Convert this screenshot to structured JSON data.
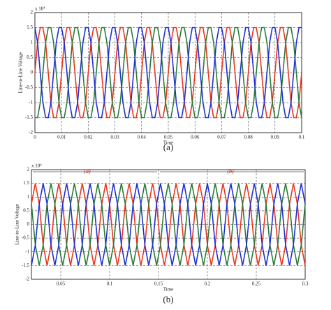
{
  "chart_data": [
    {
      "type": "line",
      "caption": "(a)",
      "x_label": "Time",
      "y_label": "Line-to-Line Voltage",
      "y_multiplier": "x 10⁴",
      "x": [
        0,
        0.001,
        0.002,
        0.003,
        0.004,
        0.005,
        0.006,
        0.007,
        0.008,
        0.009,
        0.01,
        0.011,
        0.012,
        0.013,
        0.014,
        0.015,
        0.016,
        0.017,
        0.018,
        0.019,
        0.02,
        0.021,
        0.022,
        0.023,
        0.024,
        0.025,
        0.026,
        0.027,
        0.028,
        0.029,
        0.03,
        0.031,
        0.032,
        0.033,
        0.034,
        0.035,
        0.036,
        0.037,
        0.038,
        0.039,
        0.04,
        0.041,
        0.042,
        0.043,
        0.044,
        0.045,
        0.046,
        0.047,
        0.048,
        0.049,
        0.05,
        0.051,
        0.052,
        0.053,
        0.054,
        0.055,
        0.056,
        0.057,
        0.058,
        0.059,
        0.06,
        0.061,
        0.062,
        0.063,
        0.064,
        0.065,
        0.066,
        0.067,
        0.068,
        0.069,
        0.07,
        0.071,
        0.072,
        0.073,
        0.074,
        0.075,
        0.076,
        0.077,
        0.078,
        0.079,
        0.08,
        0.081,
        0.082,
        0.083,
        0.084,
        0.085,
        0.086,
        0.087,
        0.088,
        0.089,
        0.09,
        0.091,
        0.092,
        0.093,
        0.094,
        0.095,
        0.096,
        0.097,
        0.098,
        0.099,
        0.1
      ],
      "series": [
        {
          "color": "#e8371f",
          "values": [
            0,
            1,
            1.5,
            1.5,
            1,
            0,
            -1,
            -1.5,
            -1.5,
            -1,
            0,
            1,
            1.5,
            1.5,
            1,
            0,
            -1,
            -1.5,
            -1.5,
            -1,
            0,
            1,
            1.5,
            1.5,
            1,
            0,
            -1,
            -1.5,
            -1.5,
            -1,
            0,
            1,
            1.5,
            1.5,
            1,
            0,
            -1,
            -1.5,
            -1.5,
            -1,
            0,
            1,
            1.5,
            1.5,
            1,
            0,
            -1,
            -1.5,
            -1.5,
            -1,
            0,
            1,
            1.5,
            1.5,
            1,
            0,
            -1,
            -1.5,
            -1.5,
            -1,
            0,
            1,
            1.5,
            1.5,
            1,
            0,
            -1,
            -1.5,
            -1.5,
            -1,
            0,
            1,
            1.5,
            1.5,
            1,
            0,
            -1,
            -1.5,
            -1.5,
            -1,
            0,
            1,
            1.5,
            1.5,
            1,
            0,
            -1,
            -1.5,
            -1.5,
            -1,
            0,
            1,
            1.5,
            1.5,
            1,
            0,
            -1,
            -1.5,
            -1.5,
            -1,
            0
          ]
        },
        {
          "color": "#2a7a3a",
          "values": [
            -1.5,
            -1.5,
            -1,
            0,
            1,
            1.5,
            1.5,
            1,
            0,
            -1,
            -1.5,
            -1.5,
            -1,
            0,
            1,
            1.5,
            1.5,
            1,
            0,
            -1,
            -1.5,
            -1.5,
            -1,
            0,
            1,
            1.5,
            1.5,
            1,
            0,
            -1,
            -1.5,
            -1.5,
            -1,
            0,
            1,
            1.5,
            1.5,
            1,
            0,
            -1,
            -1.5,
            -1.5,
            -1,
            0,
            1,
            1.5,
            1.5,
            1,
            0,
            -1,
            -1.5,
            -1.5,
            -1,
            0,
            1,
            1.5,
            1.5,
            1,
            0,
            -1,
            -1.5,
            -1.5,
            -1,
            0,
            1,
            1.5,
            1.5,
            1,
            0,
            -1,
            -1.5,
            -1.5,
            -1,
            0,
            1,
            1.5,
            1.5,
            1,
            0,
            -1,
            -1.5,
            -1.5,
            -1,
            0,
            1,
            1.5,
            1.5,
            1,
            0,
            -1,
            -1.5,
            -1.5,
            -1,
            0,
            1,
            1.5,
            1.5,
            1,
            0,
            -1,
            -1.5
          ]
        },
        {
          "color": "#1f2fd0",
          "values": [
            1.5,
            1,
            0,
            -1,
            -1.5,
            -1.5,
            -1,
            0,
            1,
            1.5,
            1.5,
            1,
            0,
            -1,
            -1.5,
            -1.5,
            -1,
            0,
            1,
            1.5,
            1.5,
            1,
            0,
            -1,
            -1.5,
            -1.5,
            -1,
            0,
            1,
            1.5,
            1.5,
            1,
            0,
            -1,
            -1.5,
            -1.5,
            -1,
            0,
            1,
            1.5,
            1.5,
            1,
            0,
            -1,
            -1.5,
            -1.5,
            -1,
            0,
            1,
            1.5,
            1.5,
            1,
            0,
            -1,
            -1.5,
            -1.5,
            -1,
            0,
            1,
            1.5,
            1.5,
            1,
            0,
            -1,
            -1.5,
            -1.5,
            -1,
            0,
            1,
            1.5,
            1.5,
            1,
            0,
            -1,
            -1.5,
            -1.5,
            -1,
            0,
            1,
            1.5,
            1.5,
            1,
            0,
            -1,
            -1.5,
            -1.5,
            -1,
            0,
            1,
            1.5,
            1.5,
            1,
            0,
            -1,
            -1.5,
            -1.5,
            -1,
            0,
            1,
            1.5,
            1.5
          ]
        }
      ],
      "xlim": [
        0,
        0.1
      ],
      "xticks": [
        0,
        0.01,
        0.02,
        0.03,
        0.04,
        0.05,
        0.06,
        0.07,
        0.08,
        0.09,
        0.1
      ],
      "ylim": [
        -2,
        2
      ],
      "yticks": [
        -2,
        -1.5,
        -1,
        -0.5,
        0,
        0.5,
        1,
        1.5,
        2
      ],
      "grid": true
    },
    {
      "type": "line",
      "caption": "(b)",
      "x_label": "Time",
      "y_label": "Line-to-Line Voltage",
      "y_multiplier": "x 10⁴",
      "annotations": [
        "(a)",
        "(b)"
      ],
      "x": [
        0.02,
        0.024,
        0.028,
        0.032,
        0.036,
        0.04,
        0.044,
        0.048,
        0.052,
        0.056,
        0.06,
        0.064,
        0.068,
        0.072,
        0.076,
        0.08,
        0.084,
        0.088,
        0.092,
        0.096,
        0.1,
        0.104,
        0.108,
        0.112,
        0.116,
        0.12,
        0.124,
        0.128,
        0.132,
        0.136,
        0.14,
        0.144,
        0.148,
        0.152,
        0.156,
        0.16,
        0.164,
        0.168,
        0.172,
        0.176,
        0.18,
        0.184,
        0.188,
        0.192,
        0.196,
        0.2,
        0.204,
        0.208,
        0.212,
        0.216,
        0.22,
        0.224,
        0.228,
        0.232,
        0.236,
        0.24,
        0.244,
        0.248,
        0.252,
        0.256,
        0.26,
        0.264,
        0.268,
        0.272,
        0.276,
        0.28,
        0.284,
        0.288,
        0.292,
        0.296,
        0.3
      ],
      "series": [
        {
          "color": "#e8371f",
          "values": [
            0.75,
            1.5,
            0.75,
            -0.75,
            -1.5,
            -0.75,
            0.75,
            1.5,
            0.75,
            -0.75,
            -1.5,
            -0.75,
            0.75,
            1.5,
            0.75,
            -0.75,
            -1.5,
            -0.75,
            0.75,
            1.5,
            0.75,
            -0.75,
            -1.5,
            -0.75,
            0.75,
            1.5,
            0.75,
            -0.75,
            -1.5,
            -0.75,
            0.75,
            1.5,
            0.75,
            -0.75,
            -1.5,
            -0.75,
            0.75,
            1.5,
            0.75,
            -0.75,
            -1.5,
            -0.75,
            0.75,
            1.5,
            0.75,
            -0.75,
            -1.5,
            -0.75,
            0.75,
            1.5,
            0.75,
            -0.75,
            -1.5,
            -0.75,
            0.75,
            1.5,
            0.75,
            -0.75,
            -1.5,
            -0.75,
            0.75,
            1.5,
            0.75,
            -0.75,
            -1.5,
            -0.75,
            0.75,
            1.5,
            0.75,
            -0.75,
            -1.5
          ]
        },
        {
          "color": "#2a7a3a",
          "values": [
            0.75,
            -0.75,
            -1.5,
            -0.75,
            0.75,
            1.5,
            0.75,
            -0.75,
            -1.5,
            -0.75,
            0.75,
            1.5,
            0.75,
            -0.75,
            -1.5,
            -0.75,
            0.75,
            1.5,
            0.75,
            -0.75,
            -1.5,
            -0.75,
            0.75,
            1.5,
            0.75,
            -0.75,
            -1.5,
            -0.75,
            0.75,
            1.5,
            0.75,
            -0.75,
            -1.5,
            -0.75,
            0.75,
            1.5,
            0.75,
            -0.75,
            -1.5,
            -0.75,
            0.75,
            1.5,
            0.75,
            -0.75,
            -1.5,
            -0.75,
            0.75,
            1.5,
            0.75,
            -0.75,
            -1.5,
            -0.75,
            0.75,
            1.5,
            0.75,
            -0.75,
            -1.5,
            -0.75,
            0.75,
            1.5,
            0.75,
            -0.75,
            -1.5,
            -0.75,
            0.75,
            1.5,
            0.75,
            -0.75,
            -1.5,
            -0.75,
            0.75
          ]
        },
        {
          "color": "#1f2fd0",
          "values": [
            -1.5,
            -0.75,
            0.75,
            1.5,
            0.75,
            -0.75,
            -1.5,
            -0.75,
            0.75,
            1.5,
            0.75,
            -0.75,
            -1.5,
            -0.75,
            0.75,
            1.5,
            0.75,
            -0.75,
            -1.5,
            -0.75,
            0.75,
            1.5,
            0.75,
            -0.75,
            -1.5,
            -0.75,
            0.75,
            1.5,
            0.75,
            -0.75,
            -1.5,
            -0.75,
            0.75,
            1.5,
            0.75,
            -0.75,
            -1.5,
            -0.75,
            0.75,
            1.5,
            0.75,
            -0.75,
            -1.5,
            -0.75,
            0.75,
            1.5,
            0.75,
            -0.75,
            -1.5,
            -0.75,
            0.75,
            1.5,
            0.75,
            -0.75,
            -1.5,
            -0.75,
            0.75,
            1.5,
            0.75,
            -0.75,
            -1.5,
            -0.75,
            0.75,
            1.5,
            0.75,
            -0.75,
            -1.5,
            -0.75,
            0.75,
            1.5,
            0.75
          ]
        }
      ],
      "xlim": [
        0.02,
        0.3
      ],
      "xticks": [
        0.05,
        0.1,
        0.15,
        0.2,
        0.25,
        0.3
      ],
      "ylim": [
        -2,
        2
      ],
      "yticks": [
        -2,
        -1.5,
        -1,
        -0.5,
        0,
        0.5,
        1,
        1.5,
        2
      ],
      "grid": true
    }
  ]
}
